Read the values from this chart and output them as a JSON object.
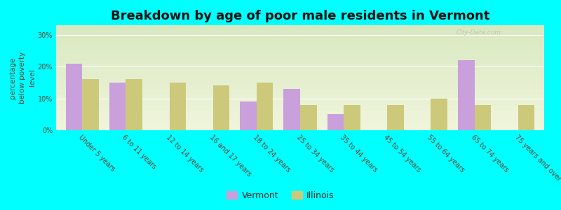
{
  "title": "Breakdown by age of poor male residents in Vermont",
  "categories": [
    "Under 5 years",
    "6 to 11 years",
    "12 to 14 years",
    "16 and 17 years",
    "18 to 24 years",
    "25 to 34 years",
    "35 to 44 years",
    "45 to 54 years",
    "55 to 64 years",
    "65 to 74 years",
    "75 years and over"
  ],
  "vermont": [
    21,
    15,
    0,
    0,
    9,
    13,
    5,
    0,
    0,
    22,
    0
  ],
  "illinois": [
    16,
    16,
    15,
    14,
    15,
    8,
    8,
    8,
    10,
    8,
    8
  ],
  "vermont_color": "#c9a0dc",
  "illinois_color": "#cdc97a",
  "background_color": "#00ffff",
  "ylabel": "percentage\nbelow poverty\nlevel",
  "yticks": [
    0,
    10,
    20,
    30
  ],
  "ytick_labels": [
    "0%",
    "10%",
    "20%",
    "30%"
  ],
  "ylim": [
    0,
    33
  ],
  "bar_width": 0.38,
  "title_fontsize": 13,
  "axis_label_fontsize": 7.5,
  "tick_fontsize": 7,
  "legend_fontsize": 9
}
